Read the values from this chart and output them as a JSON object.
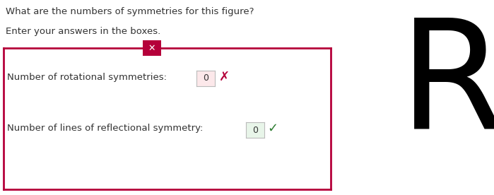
{
  "title_line1": "What are the numbers of symmetries for this figure?",
  "title_line2": "Enter your answers in the boxes.",
  "label1": "Number of rotational symmetries:",
  "value1": "0",
  "label2": "Number of lines of reflectional symmetry:",
  "value2": "0",
  "box_border_color": "#b5003a",
  "box_x_color": "#b5003a",
  "box_bg_wrong": "#fce8ea",
  "box_bg_correct": "#e8f5e9",
  "text_color": "#333333",
  "background_color": "#ffffff",
  "letter": "R",
  "letter_color": "#000000",
  "figw": 6.99,
  "figh": 2.76,
  "dpi": 100
}
